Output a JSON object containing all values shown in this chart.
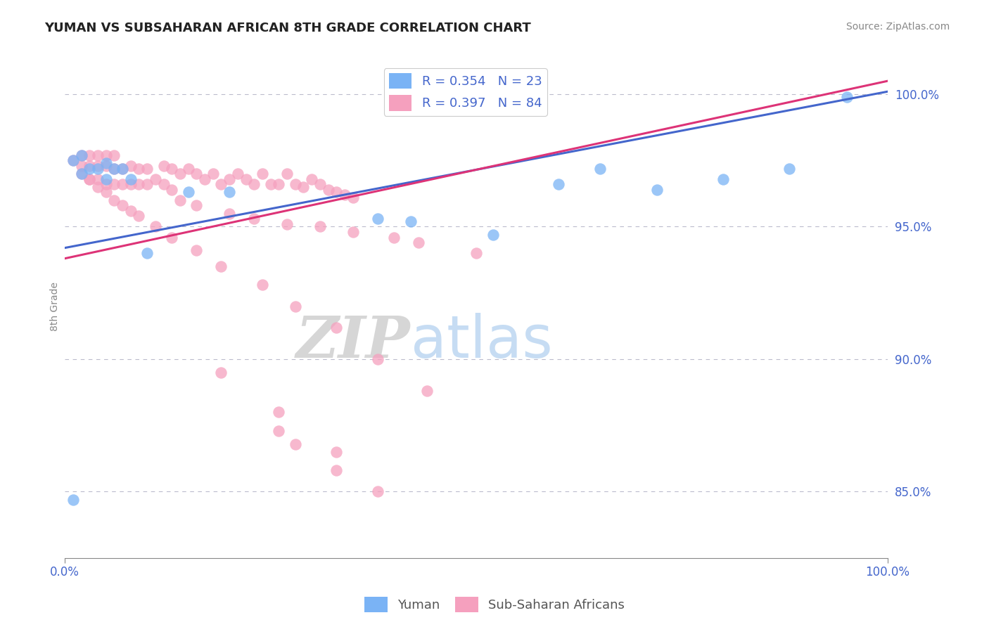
{
  "title": "YUMAN VS SUBSAHARAN AFRICAN 8TH GRADE CORRELATION CHART",
  "source": "Source: ZipAtlas.com",
  "ylabel": "8th Grade",
  "yaxis_ticks": [
    0.85,
    0.9,
    0.95,
    1.0
  ],
  "yaxis_labels": [
    "85.0%",
    "90.0%",
    "95.0%",
    "100.0%"
  ],
  "xlim": [
    0.0,
    1.0
  ],
  "ylim": [
    0.825,
    1.015
  ],
  "blue_R": 0.354,
  "blue_N": 23,
  "pink_R": 0.397,
  "pink_N": 84,
  "blue_color": "#7ab3f5",
  "pink_color": "#f5a0be",
  "blue_line_color": "#4466cc",
  "pink_line_color": "#dd3377",
  "blue_line_x0": 0.0,
  "blue_line_y0": 0.942,
  "blue_line_x1": 1.0,
  "blue_line_y1": 1.001,
  "pink_line_x0": 0.0,
  "pink_line_y0": 0.938,
  "pink_line_x1": 1.0,
  "pink_line_y1": 1.005,
  "blue_scatter_x": [
    0.01,
    0.02,
    0.02,
    0.03,
    0.04,
    0.05,
    0.05,
    0.06,
    0.07,
    0.08,
    0.1,
    0.15,
    0.2,
    0.38,
    0.42,
    0.52,
    0.6,
    0.65,
    0.72,
    0.8,
    0.88,
    0.95,
    0.01
  ],
  "blue_scatter_y": [
    0.975,
    0.977,
    0.97,
    0.972,
    0.972,
    0.974,
    0.968,
    0.972,
    0.972,
    0.968,
    0.94,
    0.963,
    0.963,
    0.953,
    0.952,
    0.947,
    0.966,
    0.972,
    0.964,
    0.968,
    0.972,
    0.999,
    0.847
  ],
  "pink_scatter_x": [
    0.01,
    0.02,
    0.02,
    0.03,
    0.03,
    0.03,
    0.04,
    0.04,
    0.04,
    0.05,
    0.05,
    0.05,
    0.06,
    0.06,
    0.06,
    0.07,
    0.07,
    0.08,
    0.08,
    0.09,
    0.09,
    0.1,
    0.1,
    0.11,
    0.12,
    0.12,
    0.13,
    0.13,
    0.14,
    0.15,
    0.16,
    0.17,
    0.18,
    0.19,
    0.2,
    0.21,
    0.22,
    0.23,
    0.24,
    0.25,
    0.26,
    0.27,
    0.28,
    0.29,
    0.3,
    0.31,
    0.32,
    0.33,
    0.34,
    0.35,
    0.14,
    0.16,
    0.2,
    0.23,
    0.27,
    0.31,
    0.35,
    0.4,
    0.43,
    0.5,
    0.02,
    0.03,
    0.04,
    0.05,
    0.06,
    0.07,
    0.08,
    0.09,
    0.11,
    0.13,
    0.16,
    0.19,
    0.24,
    0.28,
    0.33,
    0.38,
    0.44,
    0.19,
    0.26,
    0.33,
    0.26,
    0.28,
    0.33,
    0.38
  ],
  "pink_scatter_y": [
    0.975,
    0.977,
    0.97,
    0.977,
    0.973,
    0.968,
    0.977,
    0.973,
    0.968,
    0.977,
    0.973,
    0.966,
    0.977,
    0.972,
    0.966,
    0.972,
    0.966,
    0.973,
    0.966,
    0.972,
    0.966,
    0.972,
    0.966,
    0.968,
    0.973,
    0.966,
    0.972,
    0.964,
    0.97,
    0.972,
    0.97,
    0.968,
    0.97,
    0.966,
    0.968,
    0.97,
    0.968,
    0.966,
    0.97,
    0.966,
    0.966,
    0.97,
    0.966,
    0.965,
    0.968,
    0.966,
    0.964,
    0.963,
    0.962,
    0.961,
    0.96,
    0.958,
    0.955,
    0.953,
    0.951,
    0.95,
    0.948,
    0.946,
    0.944,
    0.94,
    0.973,
    0.968,
    0.965,
    0.963,
    0.96,
    0.958,
    0.956,
    0.954,
    0.95,
    0.946,
    0.941,
    0.935,
    0.928,
    0.92,
    0.912,
    0.9,
    0.888,
    0.895,
    0.88,
    0.865,
    0.873,
    0.868,
    0.858,
    0.85
  ]
}
